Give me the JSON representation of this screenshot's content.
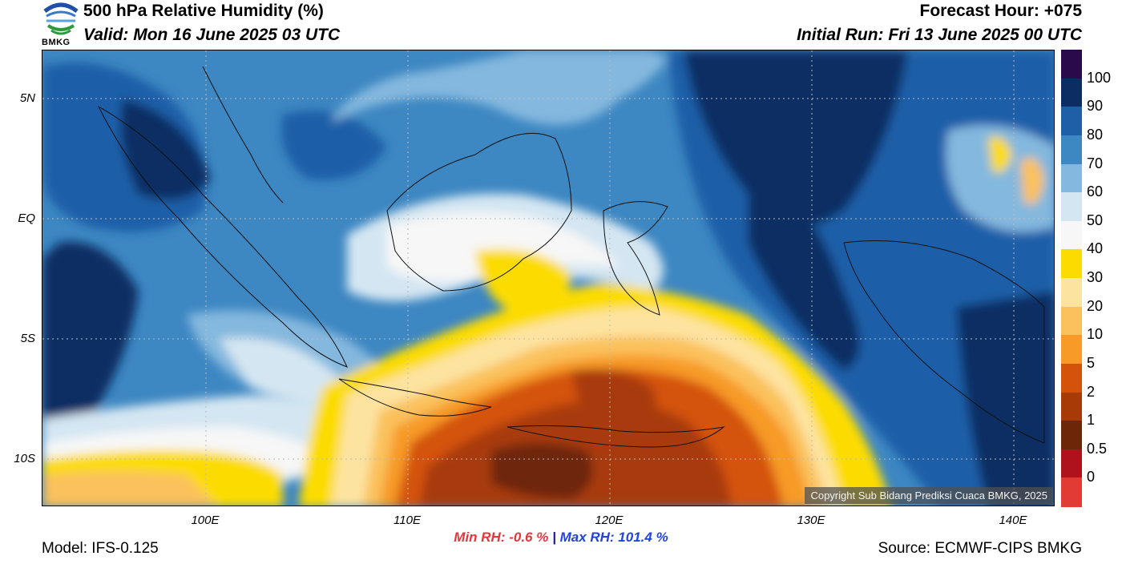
{
  "header": {
    "title": "500 hPa Relative Humidity (%)",
    "valid": "Valid: Mon 16 June 2025 03 UTC",
    "forecast_hour": "Forecast Hour: +075",
    "initial_run": "Initial Run: Fri 13 June 2025 00 UTC",
    "logo_text": "BMKG"
  },
  "axes": {
    "lat_labels": [
      "5N",
      "EQ",
      "5S",
      "10S"
    ],
    "lon_labels": [
      "100E",
      "110E",
      "120E",
      "130E",
      "140E"
    ]
  },
  "colorbar": {
    "labels": [
      "100",
      "90",
      "80",
      "70",
      "60",
      "50",
      "40",
      "30",
      "20",
      "10",
      "5",
      "2",
      "1",
      "0.5",
      "0"
    ],
    "colors": [
      "#2a0a4a",
      "#0b2d63",
      "#1e5fa8",
      "#3d87c2",
      "#84b8de",
      "#d4e6f2",
      "#f7f7f7",
      "#fcdc00",
      "#fde3a0",
      "#fbc15c",
      "#f79a28",
      "#d4520a",
      "#a83a08",
      "#6e2608",
      "#b0121c",
      "#e23b34"
    ]
  },
  "stats": {
    "min_rh": "Min RH:  -0.6 %",
    "separator": "|",
    "max_rh": "Max RH: 101.4 %"
  },
  "footer": {
    "model": "Model: IFS-0.125",
    "source": "Source: ECMWF-CIPS BMKG",
    "copyright": "Copyright Sub Bidang Prediksi Cuaca BMKG, 2025"
  }
}
